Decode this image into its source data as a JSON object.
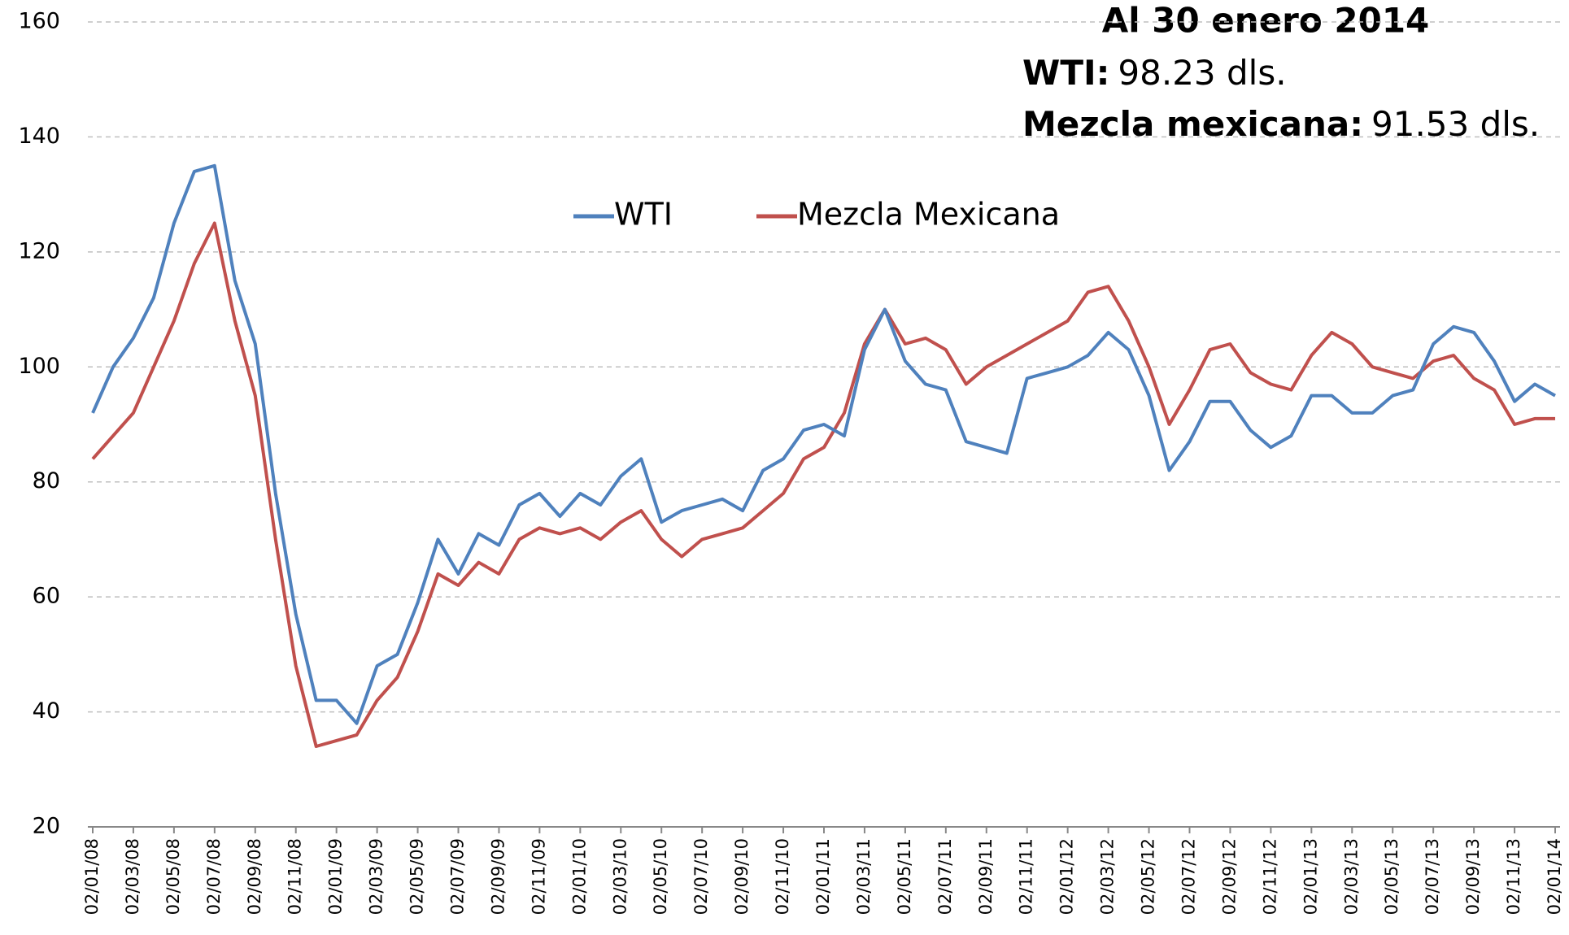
{
  "chart_data": {
    "type": "line",
    "categories": [
      "02/01/08",
      null,
      "02/03/08",
      null,
      "02/05/08",
      null,
      "02/07/08",
      null,
      "02/09/08",
      null,
      "02/11/08",
      null,
      "02/01/09",
      null,
      "02/03/09",
      null,
      "02/05/09",
      null,
      "02/07/09",
      null,
      "02/09/09",
      null,
      "02/11/09",
      null,
      "02/01/10",
      null,
      "02/03/10",
      null,
      "02/05/10",
      null,
      "02/07/10",
      null,
      "02/09/10",
      null,
      "02/11/10",
      null,
      "02/01/11",
      null,
      "02/03/11",
      null,
      "02/05/11",
      null,
      "02/07/11",
      null,
      "02/09/11",
      null,
      "02/11/11",
      null,
      "02/01/12",
      null,
      "02/03/12",
      null,
      "02/05/12",
      null,
      "02/07/12",
      null,
      "02/09/12",
      null,
      "02/11/12",
      null,
      "02/01/13",
      null,
      "02/03/13",
      null,
      "02/05/13",
      null,
      "02/07/13",
      null,
      "02/09/13",
      null,
      "02/11/13",
      null,
      "02/01/14"
    ],
    "series": [
      {
        "name": "WTI",
        "color": "#4f81bd",
        "values": [
          92,
          100,
          105,
          112,
          125,
          134,
          135,
          115,
          104,
          78,
          57,
          42,
          42,
          38,
          48,
          50,
          59,
          70,
          64,
          71,
          69,
          76,
          78,
          74,
          78,
          76,
          81,
          84,
          73,
          75,
          76,
          77,
          75,
          82,
          84,
          89,
          90,
          88,
          103,
          110,
          101,
          97,
          96,
          87,
          86,
          85,
          98,
          99,
          100,
          102,
          106,
          103,
          95,
          82,
          87,
          94,
          94,
          89,
          86,
          88,
          95,
          95,
          92,
          92,
          95,
          96,
          104,
          107,
          106,
          101,
          94,
          97,
          95
        ]
      },
      {
        "name": "Mezcla Mexicana",
        "color": "#c0504d",
        "values": [
          84,
          88,
          92,
          100,
          108,
          118,
          125,
          108,
          95,
          70,
          48,
          34,
          35,
          36,
          42,
          46,
          54,
          64,
          62,
          66,
          64,
          70,
          72,
          71,
          72,
          70,
          73,
          75,
          70,
          67,
          70,
          71,
          72,
          75,
          78,
          84,
          86,
          92,
          104,
          110,
          104,
          105,
          103,
          97,
          100,
          102,
          104,
          106,
          108,
          113,
          114,
          108,
          100,
          90,
          96,
          103,
          104,
          99,
          97,
          96,
          102,
          106,
          104,
          100,
          99,
          98,
          101,
          102,
          98,
          96,
          90,
          91,
          91
        ]
      }
    ],
    "ylim": [
      20,
      160
    ],
    "yticks": [
      20,
      40,
      60,
      80,
      100,
      120,
      140,
      160
    ],
    "grid": true,
    "legend": "top",
    "annotations": {
      "title": "Al 30 enero 2014",
      "lines": [
        {
          "label": "WTI:",
          "text": "98.23 dls."
        },
        {
          "label": "Mezcla mexicana:",
          "text": "91.53 dls."
        }
      ]
    }
  }
}
